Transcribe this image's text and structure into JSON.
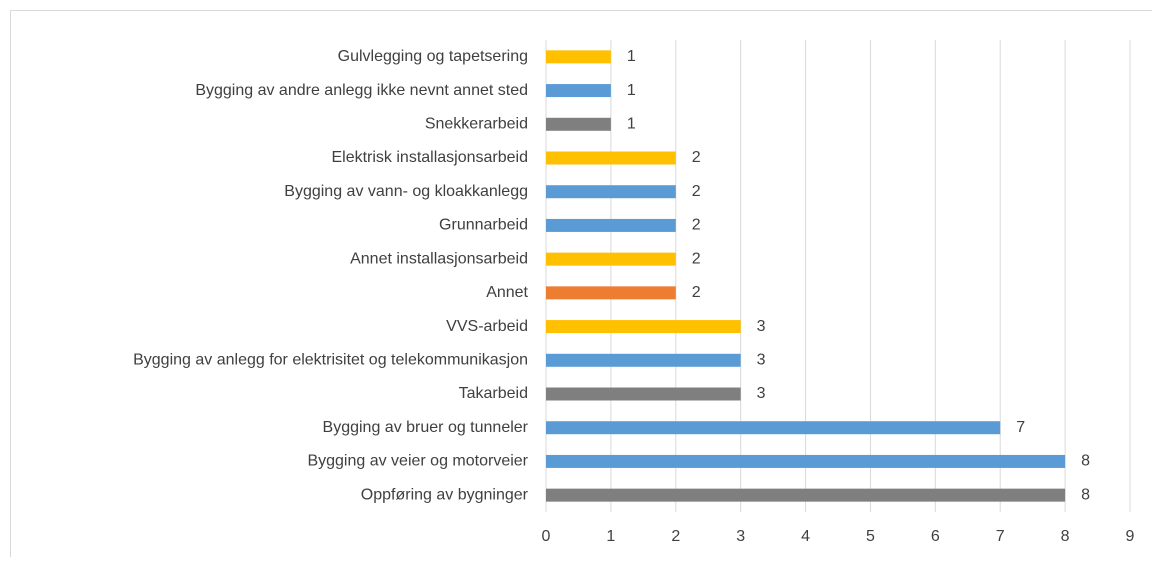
{
  "chart_data": {
    "type": "bar",
    "categories": [
      "Gulvlegging og tapetsering",
      "Bygging av andre anlegg ikke nevnt annet sted",
      "Snekkerarbeid",
      "Elektrisk installasjonsarbeid",
      "Bygging av vann- og kloakkanlegg",
      "Grunnarbeid",
      "Annet installasjonsarbeid",
      "Annet",
      "VVS-arbeid",
      "Bygging av anlegg for elektrisitet og telekommunikasjon",
      "Takarbeid",
      "Bygging av bruer og tunneler",
      "Bygging av veier og motorveier",
      "Oppføring av bygninger"
    ],
    "values": [
      1,
      1,
      1,
      2,
      2,
      2,
      2,
      2,
      3,
      3,
      3,
      7,
      8,
      8
    ],
    "colors": [
      "#ffc000",
      "#5b9bd5",
      "#7f7f7f",
      "#ffc000",
      "#5b9bd5",
      "#5b9bd5",
      "#ffc000",
      "#ed7d31",
      "#ffc000",
      "#5b9bd5",
      "#7f7f7f",
      "#5b9bd5",
      "#5b9bd5",
      "#7f7f7f"
    ],
    "xlim": [
      0,
      9
    ],
    "xticks": [
      0,
      1,
      2,
      3,
      4,
      5,
      6,
      7,
      8,
      9
    ],
    "grid": true
  }
}
